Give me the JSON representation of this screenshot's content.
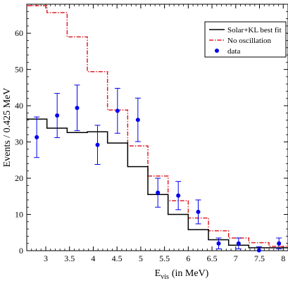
{
  "chart_data": {
    "type": "line",
    "title": "",
    "xlabel_main": "E",
    "xlabel_sub": "vis",
    "xlabel_rest": "(in MeV)",
    "ylabel": "Events / 0.425 MeV",
    "xlim": [
      2.6,
      8.1
    ],
    "ylim": [
      0,
      68
    ],
    "xticks": [
      3,
      3.5,
      4,
      4.5,
      5,
      5.5,
      6,
      6.5,
      7,
      7.5,
      8
    ],
    "xtick_labels": [
      "3",
      "3.5",
      "4",
      "4.5",
      "5",
      "5.5",
      "6",
      "6.5",
      "7",
      "7.5",
      "8"
    ],
    "yticks": [
      0,
      10,
      20,
      30,
      40,
      50,
      60
    ],
    "ytick_labels": [
      "0",
      "10",
      "20",
      "30",
      "40",
      "50",
      "60"
    ],
    "legend_position": "top-right",
    "legend": [
      "Solar+KL best fit",
      "No oscillation",
      "data"
    ],
    "bin_edges": [
      2.6,
      3.025,
      3.45,
      3.875,
      4.3,
      4.725,
      5.15,
      5.575,
      6.0,
      6.425,
      6.85,
      7.275,
      7.7,
      8.125
    ],
    "series": [
      {
        "name": "Solar+KL best fit",
        "style": "solid",
        "color": "#000000",
        "values": [
          36.3,
          33.8,
          32.6,
          32.8,
          29.7,
          23.2,
          15.5,
          10.0,
          5.8,
          3.0,
          1.5,
          0.8,
          0.8
        ]
      },
      {
        "name": "No oscillation",
        "style": "dash-dot",
        "color": "#e0202a",
        "values": [
          67.6,
          65.7,
          59.0,
          49.4,
          38.8,
          28.9,
          20.6,
          13.8,
          9.0,
          5.5,
          3.5,
          2.2,
          1.2
        ]
      }
    ],
    "data_points": {
      "name": "data",
      "color": "#0000ee",
      "x": [
        2.81,
        3.24,
        3.66,
        4.09,
        4.51,
        4.94,
        5.36,
        5.79,
        6.21,
        6.64,
        7.06,
        7.49,
        7.91
      ],
      "y": [
        31.3,
        37.3,
        39.4,
        29.2,
        38.6,
        36.1,
        16.0,
        15.2,
        10.7,
        2.0,
        2.0,
        0.1,
        2.0
      ],
      "err": [
        5.6,
        6.1,
        6.3,
        5.4,
        6.2,
        6.0,
        4.0,
        3.9,
        3.3,
        1.5,
        1.5,
        1.0,
        1.5
      ]
    }
  }
}
